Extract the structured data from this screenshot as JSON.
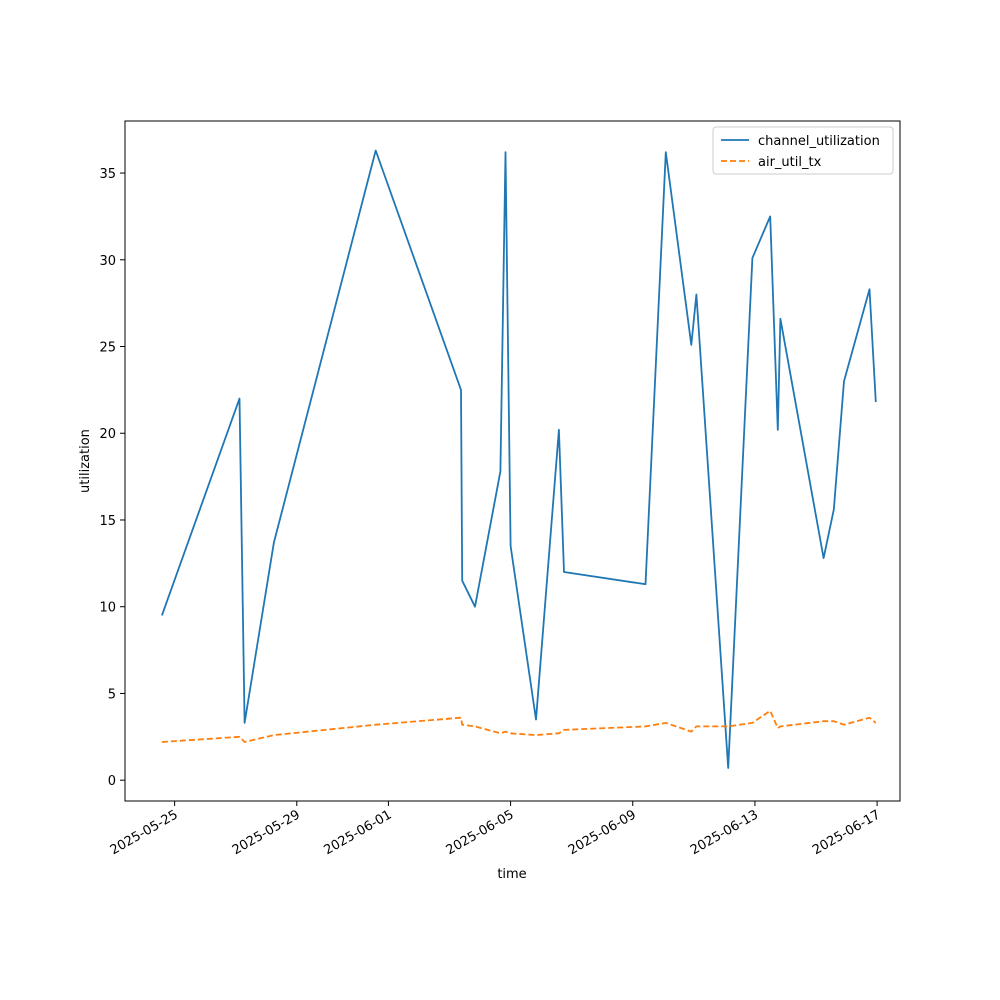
{
  "chart_data": {
    "type": "line",
    "xlabel": "time",
    "ylabel": "utilization",
    "x_axis": "date",
    "xlim": [
      "2025-05-23 09:00",
      "2025-06-17 18:00"
    ],
    "ylim": [
      -1.2,
      38.0
    ],
    "x_ticks": [
      "2025-05-25",
      "2025-05-29",
      "2025-06-01",
      "2025-06-05",
      "2025-06-09",
      "2025-06-13",
      "2025-06-17"
    ],
    "y_ticks": [
      0,
      5,
      10,
      15,
      20,
      25,
      30,
      35
    ],
    "grid": false,
    "legend_position": "top-right",
    "series": [
      {
        "name": "channel_utilization",
        "color": "#1f77b4",
        "style": "solid",
        "points": [
          [
            "2025-05-24 14:00",
            9.5
          ],
          [
            "2025-05-27 03:00",
            22.0
          ],
          [
            "2025-05-27 07:00",
            3.3
          ],
          [
            "2025-05-28 06:00",
            13.7
          ],
          [
            "2025-05-31 14:00",
            36.3
          ],
          [
            "2025-06-03 09:00",
            22.5
          ],
          [
            "2025-06-03 10:00",
            11.5
          ],
          [
            "2025-06-03 20:00",
            10.0
          ],
          [
            "2025-06-04 16:00",
            17.8
          ],
          [
            "2025-06-04 20:00",
            36.2
          ],
          [
            "2025-06-05 00:00",
            13.5
          ],
          [
            "2025-06-05 20:00",
            3.5
          ],
          [
            "2025-06-06 14:00",
            20.2
          ],
          [
            "2025-06-06 18:00",
            12.0
          ],
          [
            "2025-06-09 10:00",
            11.3
          ],
          [
            "2025-06-10 02:00",
            36.2
          ],
          [
            "2025-06-10 22:00",
            25.1
          ],
          [
            "2025-06-11 02:00",
            28.0
          ],
          [
            "2025-06-12 03:00",
            0.7
          ],
          [
            "2025-06-12 22:00",
            30.1
          ],
          [
            "2025-06-13 12:00",
            32.5
          ],
          [
            "2025-06-13 18:00",
            20.2
          ],
          [
            "2025-06-13 20:00",
            26.6
          ],
          [
            "2025-06-15 06:00",
            12.8
          ],
          [
            "2025-06-15 14:00",
            15.6
          ],
          [
            "2025-06-15 22:00",
            23.0
          ],
          [
            "2025-06-16 18:00",
            28.3
          ],
          [
            "2025-06-16 23:00",
            21.8
          ]
        ]
      },
      {
        "name": "air_util_tx",
        "color": "#ff7f0e",
        "style": "dashed",
        "points": [
          [
            "2025-05-24 14:00",
            2.2
          ],
          [
            "2025-05-27 03:00",
            2.5
          ],
          [
            "2025-05-27 07:00",
            2.2
          ],
          [
            "2025-05-28 06:00",
            2.6
          ],
          [
            "2025-05-31 14:00",
            3.2
          ],
          [
            "2025-06-03 09:00",
            3.6
          ],
          [
            "2025-06-03 10:00",
            3.2
          ],
          [
            "2025-06-03 20:00",
            3.1
          ],
          [
            "2025-06-04 16:00",
            2.7
          ],
          [
            "2025-06-04 20:00",
            2.8
          ],
          [
            "2025-06-05 00:00",
            2.7
          ],
          [
            "2025-06-05 20:00",
            2.6
          ],
          [
            "2025-06-06 14:00",
            2.7
          ],
          [
            "2025-06-06 18:00",
            2.9
          ],
          [
            "2025-06-09 10:00",
            3.1
          ],
          [
            "2025-06-10 02:00",
            3.3
          ],
          [
            "2025-06-10 22:00",
            2.8
          ],
          [
            "2025-06-11 02:00",
            3.1
          ],
          [
            "2025-06-12 03:00",
            3.1
          ],
          [
            "2025-06-12 22:00",
            3.3
          ],
          [
            "2025-06-13 12:00",
            4.0
          ],
          [
            "2025-06-13 18:00",
            3.0
          ],
          [
            "2025-06-13 20:00",
            3.1
          ],
          [
            "2025-06-15 06:00",
            3.4
          ],
          [
            "2025-06-15 14:00",
            3.4
          ],
          [
            "2025-06-15 22:00",
            3.2
          ],
          [
            "2025-06-16 18:00",
            3.6
          ],
          [
            "2025-06-16 23:00",
            3.3
          ]
        ]
      }
    ]
  }
}
